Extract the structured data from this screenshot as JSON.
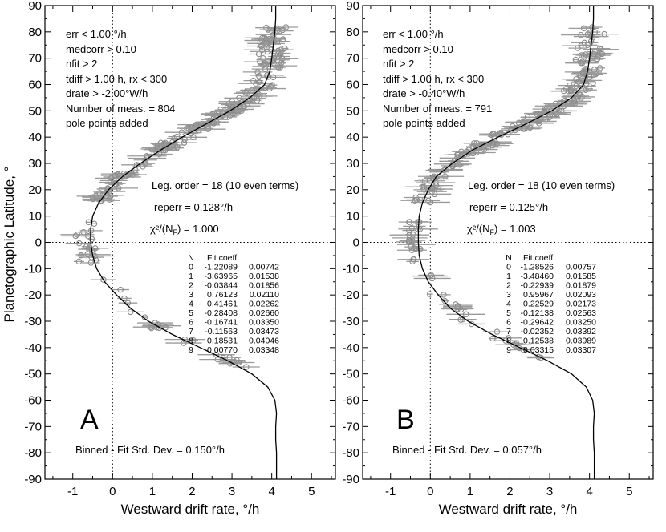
{
  "chart_data": {
    "type": "scatter",
    "ylabel": "Planetographic Latitude, °",
    "panels": [
      {
        "letter": "A",
        "xlabel": "Westward drift rate, °/h",
        "xlim": [
          -1.7,
          5.6
        ],
        "ylim": [
          -90,
          90
        ],
        "xticks": [
          "-1",
          "0",
          "1",
          "2",
          "3",
          "4",
          "5"
        ],
        "xtick_values": [
          -1,
          0,
          1,
          2,
          3,
          4,
          5
        ],
        "yticks": [
          "90",
          "80",
          "70",
          "60",
          "50",
          "40",
          "30",
          "20",
          "10",
          "0",
          "-10",
          "-20",
          "-30",
          "-40",
          "-50",
          "-60",
          "-70",
          "-80",
          "-90"
        ],
        "ytick_values": [
          90,
          80,
          70,
          60,
          50,
          40,
          30,
          20,
          10,
          0,
          -10,
          -20,
          -30,
          -40,
          -50,
          -60,
          -70,
          -80,
          -90
        ],
        "criteria": [
          "err < 1.00 °/h",
          "medcorr > 0.10",
          "nfit >   2",
          "tdiff > 1.00 h, rx < 300",
          "drate > -2.00°W/h",
          "Number of meas. = 804",
          "pole points added"
        ],
        "legendre_order": "Leg. order = 18 (10 even terms)",
        "reperr": "reperr = 0.128°/h",
        "chi2": "χ²/(N",
        "chi2_sub": "F",
        "chi2_val": ") = 1.000",
        "binned_std": "Binned - Fit Std. Dev. = 0.150°/h",
        "coef_headers": [
          "N",
          "Fit coeff."
        ],
        "coef_rows": [
          [
            "0",
            "-1.22089",
            "0.00742"
          ],
          [
            "1",
            "-3.63965",
            "0.01538"
          ],
          [
            "2",
            "-0.03844",
            "0.01856"
          ],
          [
            "3",
            "0.76123",
            "0.02110"
          ],
          [
            "4",
            "0.41461",
            "0.02262"
          ],
          [
            "5",
            "-0.28408",
            "0.02660"
          ],
          [
            "6",
            "-0.16741",
            "0.03350"
          ],
          [
            "7",
            "-0.11563",
            "0.03473"
          ],
          [
            "8",
            "0.18531",
            "0.04046"
          ],
          [
            "9",
            "0.00770",
            "0.03348"
          ]
        ],
        "fit_curve": [
          [
            4.1,
            90
          ],
          [
            4.1,
            85
          ],
          [
            4.08,
            80
          ],
          [
            4.04,
            75
          ],
          [
            4.0,
            70
          ],
          [
            3.95,
            65
          ],
          [
            3.82,
            60
          ],
          [
            3.45,
            55
          ],
          [
            2.95,
            50
          ],
          [
            2.35,
            45
          ],
          [
            1.75,
            40
          ],
          [
            1.2,
            35
          ],
          [
            0.7,
            30
          ],
          [
            0.25,
            25
          ],
          [
            -0.1,
            20
          ],
          [
            -0.35,
            15
          ],
          [
            -0.5,
            10
          ],
          [
            -0.55,
            5
          ],
          [
            -0.55,
            0
          ],
          [
            -0.5,
            -5
          ],
          [
            -0.4,
            -10
          ],
          [
            -0.2,
            -15
          ],
          [
            0.1,
            -20
          ],
          [
            0.45,
            -25
          ],
          [
            0.9,
            -30
          ],
          [
            1.5,
            -35
          ],
          [
            2.2,
            -40
          ],
          [
            2.9,
            -45
          ],
          [
            3.5,
            -50
          ],
          [
            3.9,
            -55
          ],
          [
            4.08,
            -60
          ],
          [
            4.12,
            -65
          ],
          [
            4.1,
            -70
          ],
          [
            4.1,
            -75
          ],
          [
            4.12,
            -80
          ],
          [
            4.12,
            -85
          ],
          [
            4.12,
            -90
          ]
        ],
        "scatter_regions": [
          {
            "lat": [
              55,
              82
            ],
            "x_center_offset": 0.0,
            "spread": 0.35,
            "n": 70
          },
          {
            "lat": [
              35,
              55
            ],
            "x_center_offset": 0.0,
            "spread": 0.3,
            "n": 80
          },
          {
            "lat": [
              15,
              35
            ],
            "x_center_offset": 0.0,
            "spread": 0.25,
            "n": 45
          },
          {
            "lat": [
              -8,
              8
            ],
            "x_center_offset": -0.15,
            "spread": 0.25,
            "n": 22
          },
          {
            "lat": [
              -48,
              -12
            ],
            "x_center_offset": 0.0,
            "spread": 0.25,
            "n": 26
          }
        ]
      },
      {
        "letter": "B",
        "xlabel": "Westward drift rate, °/h",
        "xlim": [
          -1.7,
          5.6
        ],
        "ylim": [
          -90,
          90
        ],
        "xticks": [
          "-1",
          "0",
          "1",
          "2",
          "3",
          "4",
          "5"
        ],
        "xtick_values": [
          -1,
          0,
          1,
          2,
          3,
          4,
          5
        ],
        "yticks": [
          "90",
          "80",
          "70",
          "60",
          "50",
          "40",
          "30",
          "20",
          "10",
          "0",
          "-10",
          "-20",
          "-30",
          "-40",
          "-50",
          "-60",
          "-70",
          "-80",
          "-90"
        ],
        "ytick_values": [
          90,
          80,
          70,
          60,
          50,
          40,
          30,
          20,
          10,
          0,
          -10,
          -20,
          -30,
          -40,
          -50,
          -60,
          -70,
          -80,
          -90
        ],
        "criteria": [
          "err < 1.00 °/h",
          "medcorr > 0.10",
          "nfit >   2",
          "tdiff > 1.00 h, rx < 300",
          "drate > -0.40°W/h",
          "Number of meas. = 791",
          "pole points added"
        ],
        "legendre_order": "Leg. order = 18 (10 even terms)",
        "reperr": "reperr = 0.125°/h",
        "chi2": "χ²/(N",
        "chi2_sub": "F",
        "chi2_val": ") = 1.003",
        "binned_std": "Binned - Fit Std. Dev. = 0.057°/h",
        "coef_headers": [
          "N",
          "Fit coeff."
        ],
        "coef_rows": [
          [
            "0",
            "-1.28526",
            "0.00757"
          ],
          [
            "1",
            "-3.48460",
            "0.01585"
          ],
          [
            "2",
            "-0.22939",
            "0.01879"
          ],
          [
            "3",
            "0.95967",
            "0.02093"
          ],
          [
            "4",
            "0.22529",
            "0.02173"
          ],
          [
            "5",
            "-0.12138",
            "0.02563"
          ],
          [
            "6",
            "-0.29642",
            "0.03250"
          ],
          [
            "7",
            "-0.02352",
            "0.03392"
          ],
          [
            "8",
            "0.12538",
            "0.03989"
          ],
          [
            "9",
            "0.03315",
            "0.03307"
          ]
        ],
        "fit_curve": [
          [
            4.1,
            90
          ],
          [
            4.1,
            85
          ],
          [
            4.08,
            80
          ],
          [
            4.04,
            75
          ],
          [
            4.0,
            70
          ],
          [
            3.95,
            65
          ],
          [
            3.85,
            60
          ],
          [
            3.55,
            55
          ],
          [
            3.05,
            50
          ],
          [
            2.4,
            45
          ],
          [
            1.7,
            40
          ],
          [
            1.05,
            35
          ],
          [
            0.55,
            30
          ],
          [
            0.15,
            25
          ],
          [
            -0.05,
            20
          ],
          [
            -0.2,
            15
          ],
          [
            -0.28,
            10
          ],
          [
            -0.3,
            5
          ],
          [
            -0.3,
            0
          ],
          [
            -0.28,
            -5
          ],
          [
            -0.2,
            -10
          ],
          [
            -0.05,
            -15
          ],
          [
            0.2,
            -20
          ],
          [
            0.5,
            -25
          ],
          [
            0.95,
            -30
          ],
          [
            1.55,
            -35
          ],
          [
            2.25,
            -40
          ],
          [
            2.95,
            -45
          ],
          [
            3.55,
            -50
          ],
          [
            3.92,
            -55
          ],
          [
            4.08,
            -60
          ],
          [
            4.12,
            -65
          ],
          [
            4.1,
            -70
          ],
          [
            4.1,
            -75
          ],
          [
            4.12,
            -80
          ],
          [
            4.12,
            -85
          ],
          [
            4.12,
            -90
          ]
        ],
        "scatter_regions": [
          {
            "lat": [
              55,
              82
            ],
            "x_center_offset": 0.0,
            "spread": 0.35,
            "n": 70
          },
          {
            "lat": [
              35,
              55
            ],
            "x_center_offset": 0.0,
            "spread": 0.3,
            "n": 80
          },
          {
            "lat": [
              15,
              35
            ],
            "x_center_offset": 0.0,
            "spread": 0.25,
            "n": 45
          },
          {
            "lat": [
              -8,
              8
            ],
            "x_center_offset": -0.1,
            "spread": 0.15,
            "n": 26
          },
          {
            "lat": [
              -48,
              -12
            ],
            "x_center_offset": 0.0,
            "spread": 0.25,
            "n": 26
          }
        ]
      }
    ]
  }
}
